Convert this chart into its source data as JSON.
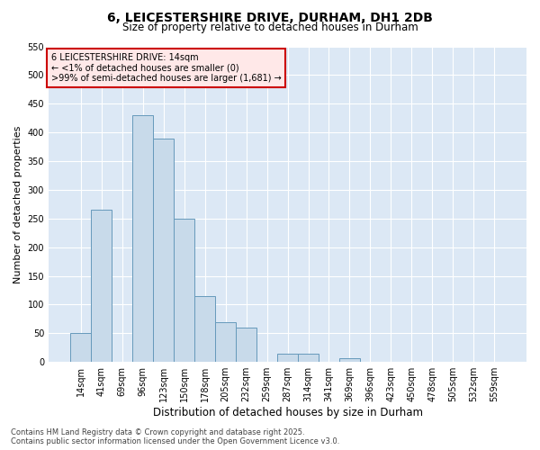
{
  "title_line1": "6, LEICESTERSHIRE DRIVE, DURHAM, DH1 2DB",
  "title_line2": "Size of property relative to detached houses in Durham",
  "xlabel": "Distribution of detached houses by size in Durham",
  "ylabel": "Number of detached properties",
  "categories": [
    "14sqm",
    "41sqm",
    "69sqm",
    "96sqm",
    "123sqm",
    "150sqm",
    "178sqm",
    "205sqm",
    "232sqm",
    "259sqm",
    "287sqm",
    "314sqm",
    "341sqm",
    "369sqm",
    "396sqm",
    "423sqm",
    "450sqm",
    "478sqm",
    "505sqm",
    "532sqm",
    "559sqm"
  ],
  "values": [
    50,
    265,
    0,
    430,
    390,
    250,
    115,
    70,
    60,
    0,
    14,
    14,
    0,
    7,
    0,
    0,
    0,
    0,
    0,
    0,
    0
  ],
  "bar_color": "#c8daea",
  "bar_edge_color": "#6699bb",
  "background_color": "#dce8f5",
  "grid_color": "#ffffff",
  "ylim": [
    0,
    550
  ],
  "yticks": [
    0,
    50,
    100,
    150,
    200,
    250,
    300,
    350,
    400,
    450,
    500,
    550
  ],
  "annotation_title": "6 LEICESTERSHIRE DRIVE: 14sqm",
  "annotation_line1": "← <1% of detached houses are smaller (0)",
  "annotation_line2": ">99% of semi-detached houses are larger (1,681) →",
  "annotation_box_facecolor": "#ffe8e8",
  "annotation_box_edgecolor": "#cc0000",
  "footer_line1": "Contains HM Land Registry data © Crown copyright and database right 2025.",
  "footer_line2": "Contains public sector information licensed under the Open Government Licence v3.0.",
  "title_fontsize": 10,
  "subtitle_fontsize": 8.5,
  "tick_fontsize": 7,
  "ylabel_fontsize": 8,
  "xlabel_fontsize": 8.5,
  "annotation_fontsize": 7,
  "footer_fontsize": 6
}
